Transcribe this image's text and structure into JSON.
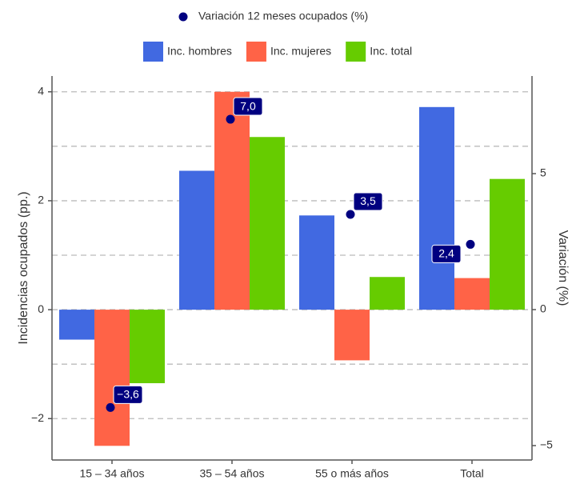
{
  "chart_data": {
    "type": "bar",
    "categories": [
      "15 – 34 años",
      "35 – 54 años",
      "55 o más años",
      "Total"
    ],
    "y_label": "Incidencias ocupados (pp.)",
    "y2_label": "Variación (%)",
    "ylim": [
      -2.76,
      4.29
    ],
    "yticks": [
      {
        "value": -2,
        "label": "−2"
      },
      0,
      2,
      4
    ],
    "minor_yticks": [
      -1,
      1,
      3
    ],
    "y2lim": [
      -5.53,
      8.59
    ],
    "y2ticks": [
      {
        "value": -5,
        "label": "−5"
      },
      0,
      5
    ],
    "grid": true,
    "series": [
      {
        "name": "Inc. hombres",
        "color": "#4169e1",
        "values": [
          -0.55,
          2.55,
          1.73,
          3.72
        ]
      },
      {
        "name": "Inc. mujeres",
        "color": "#ff6347",
        "values": [
          -2.5,
          4.0,
          -0.93,
          0.58
        ]
      },
      {
        "name": "Inc. total",
        "color": "#66cc00",
        "values": [
          -1.35,
          3.17,
          0.6,
          2.4
        ]
      },
      {
        "name": "Variación 12 meses ocupados (%)",
        "type": "scatter",
        "axis": "y2",
        "color": "#000080",
        "values": [
          -3.6,
          7.0,
          3.5,
          2.4
        ],
        "value_labels": [
          "−3,6",
          "7,0",
          "3,5",
          "2,4"
        ]
      }
    ]
  }
}
